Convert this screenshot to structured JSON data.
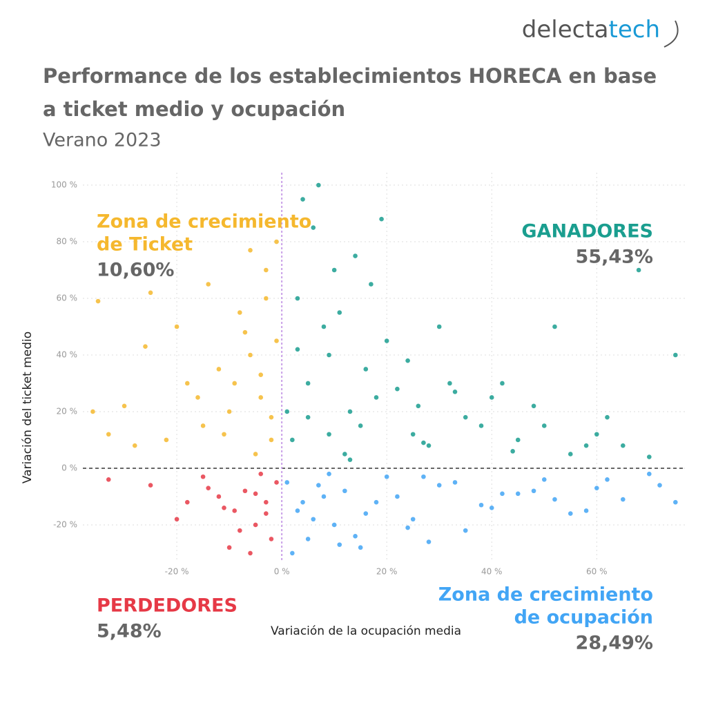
{
  "brand": {
    "part1": "delecta",
    "part2": "tech"
  },
  "chart_data": {
    "type": "scatter",
    "title_lines": [
      "Performance de los establecimientos HORECA en base",
      "a ticket medio y ocupación"
    ],
    "subtitle": "Verano 2023",
    "x_label": "Variación de la ocupación media",
    "y_label": "Variación del ticket medio",
    "xlim": [
      -37.9,
      76.8
    ],
    "ylim": [
      -32.7,
      104.4
    ],
    "grid": true,
    "xticks": [
      {
        "value": -20,
        "label": "-20 %"
      },
      {
        "value": 0,
        "label": "0 %"
      },
      {
        "value": 20,
        "label": "20 %"
      },
      {
        "value": 40,
        "label": "40 %"
      },
      {
        "value": 60,
        "label": "60 %"
      }
    ],
    "yticks": [
      {
        "value": -20,
        "label": "-20 %"
      },
      {
        "value": 0,
        "label": "0 %"
      },
      {
        "value": 20,
        "label": "20 %"
      },
      {
        "value": 40,
        "label": "40 %"
      },
      {
        "value": 60,
        "label": "60 %"
      },
      {
        "value": 80,
        "label": "80 %"
      },
      {
        "value": 100,
        "label": "100 %"
      }
    ],
    "series": [
      {
        "color": "#1a9e8f",
        "x": [
          2,
          5,
          8,
          10,
          12,
          15,
          18,
          3,
          6,
          9,
          13,
          16,
          20,
          25,
          28,
          32,
          35,
          40,
          45,
          50,
          55,
          60,
          65,
          70,
          75,
          4,
          7,
          11,
          14,
          22,
          26,
          30,
          38,
          42,
          48,
          58,
          68,
          1,
          17,
          24,
          9,
          13,
          5,
          3,
          19,
          27,
          33,
          44,
          52,
          62
        ],
        "values": [
          10,
          30,
          50,
          70,
          5,
          15,
          25,
          60,
          85,
          40,
          20,
          35,
          45,
          12,
          8,
          30,
          18,
          25,
          10,
          15,
          5,
          12,
          8,
          4,
          40,
          95,
          100,
          55,
          75,
          28,
          22,
          50,
          15,
          30,
          22,
          8,
          70,
          20,
          65,
          38,
          12,
          3,
          18,
          42,
          88,
          9,
          27,
          6,
          50,
          18
        ]
      },
      {
        "color": "#f5b82e",
        "x": [
          -2,
          -4,
          -6,
          -8,
          -10,
          -12,
          -15,
          -18,
          -22,
          -25,
          -30,
          -35,
          -3,
          -5,
          -7,
          -1,
          -9,
          -14,
          -20,
          -28,
          -33,
          -2,
          -4,
          -6,
          -11,
          -16,
          -1,
          -3,
          -26,
          -36
        ],
        "values": [
          10,
          25,
          40,
          55,
          20,
          35,
          15,
          30,
          10,
          62,
          22,
          59,
          70,
          5,
          48,
          80,
          30,
          65,
          50,
          8,
          12,
          18,
          33,
          77,
          12,
          25,
          45,
          60,
          43,
          20
        ]
      },
      {
        "color": "#e63946",
        "x": [
          -1,
          -3,
          -5,
          -7,
          -9,
          -12,
          -15,
          -20,
          -25,
          -33,
          -2,
          -4,
          -6,
          -8,
          -11,
          -14,
          -18,
          -3,
          -5,
          -10
        ],
        "values": [
          -5,
          -12,
          -20,
          -8,
          -15,
          -10,
          -3,
          -18,
          -6,
          -4,
          -25,
          -2,
          -30,
          -22,
          -14,
          -7,
          -12,
          -16,
          -9,
          -28
        ]
      },
      {
        "color": "#42a5f5",
        "x": [
          1,
          3,
          5,
          8,
          10,
          12,
          15,
          18,
          20,
          25,
          30,
          35,
          40,
          45,
          50,
          55,
          60,
          65,
          70,
          75,
          2,
          6,
          9,
          14,
          22,
          28,
          33,
          38,
          48,
          58,
          4,
          7,
          11,
          16,
          24,
          27,
          42,
          52,
          62,
          72
        ],
        "values": [
          -5,
          -15,
          -25,
          -10,
          -20,
          -8,
          -28,
          -12,
          -3,
          -18,
          -6,
          -22,
          -14,
          -9,
          -4,
          -16,
          -7,
          -11,
          -2,
          -12,
          -30,
          -18,
          -2,
          -24,
          -10,
          -26,
          -5,
          -13,
          -8,
          -15,
          -12,
          -6,
          -27,
          -16,
          -21,
          -3,
          -9,
          -11,
          -4,
          -6
        ]
      }
    ],
    "annotations": [
      {
        "lines": [
          "Zona de crecimiento",
          "de Ticket"
        ],
        "share": "10,60%"
      },
      {
        "lines": [
          "GANADORES"
        ],
        "share": "55,43%"
      },
      {
        "lines": [
          "PERDEDORES"
        ],
        "share": "5,48%"
      },
      {
        "lines": [
          "Zona de crecimiento",
          "de ocupación"
        ],
        "share": "28,49%"
      }
    ]
  }
}
